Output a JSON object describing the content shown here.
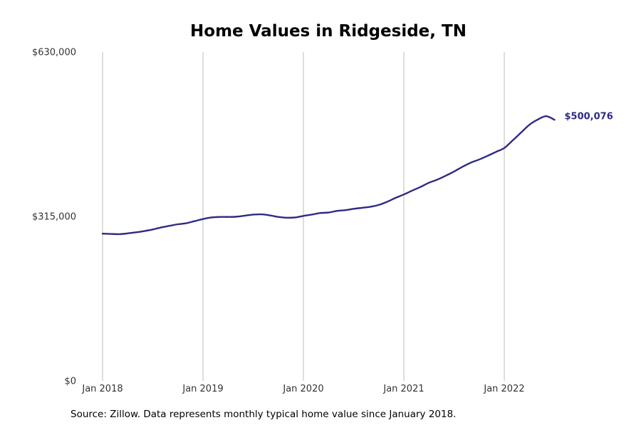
{
  "colors": {
    "line": "#2f2a85",
    "grid": "#bdbdbd",
    "text": "#333333"
  },
  "footer": {
    "source": "Source: Zillow. Data represents monthly typical home value since January 2018."
  },
  "chart_data": {
    "type": "line",
    "title": "Home Values in Ridgeside, TN",
    "xlabel": "",
    "ylabel": "",
    "grid": "vertical",
    "ylim": [
      0,
      630000
    ],
    "yticks": [
      0,
      315000,
      630000
    ],
    "ytick_labels": [
      "$0",
      "$315,000",
      "$630,000"
    ],
    "xticks": [
      "2018-01",
      "2019-01",
      "2020-01",
      "2021-01",
      "2022-01"
    ],
    "xtick_labels": [
      "Jan 2018",
      "Jan 2019",
      "Jan 2020",
      "Jan 2021",
      "Jan 2022"
    ],
    "end_label": "$500,076",
    "series": [
      {
        "x": [
          "2018-01",
          "2018-02",
          "2018-03",
          "2018-04",
          "2018-05",
          "2018-06",
          "2018-07",
          "2018-08",
          "2018-09",
          "2018-10",
          "2018-11",
          "2018-12",
          "2019-01",
          "2019-02",
          "2019-03",
          "2019-04",
          "2019-05",
          "2019-06",
          "2019-07",
          "2019-08",
          "2019-09",
          "2019-10",
          "2019-11",
          "2019-12",
          "2020-01",
          "2020-02",
          "2020-03",
          "2020-04",
          "2020-05",
          "2020-06",
          "2020-07",
          "2020-08",
          "2020-09",
          "2020-10",
          "2020-11",
          "2020-12",
          "2021-01",
          "2021-02",
          "2021-03",
          "2021-04",
          "2021-05",
          "2021-06",
          "2021-07",
          "2021-08",
          "2021-09",
          "2021-10",
          "2021-11",
          "2021-12",
          "2022-01",
          "2022-02",
          "2022-03",
          "2022-04",
          "2022-05",
          "2022-06",
          "2022-07"
        ],
        "values": [
          282000,
          281500,
          281000,
          282500,
          284500,
          287000,
          290000,
          294000,
          297000,
          300000,
          302000,
          306000,
          310000,
          313000,
          314000,
          314000,
          314500,
          316500,
          318500,
          319000,
          317000,
          314000,
          312500,
          313000,
          316000,
          318500,
          321500,
          322500,
          325500,
          327000,
          329500,
          331500,
          333500,
          337000,
          343000,
          350500,
          357000,
          364500,
          371500,
          379500,
          385500,
          393000,
          401000,
          410000,
          418000,
          424000,
          431000,
          438500,
          446000,
          460500,
          475500,
          490500,
          500500,
          507000,
          500076
        ]
      }
    ]
  }
}
